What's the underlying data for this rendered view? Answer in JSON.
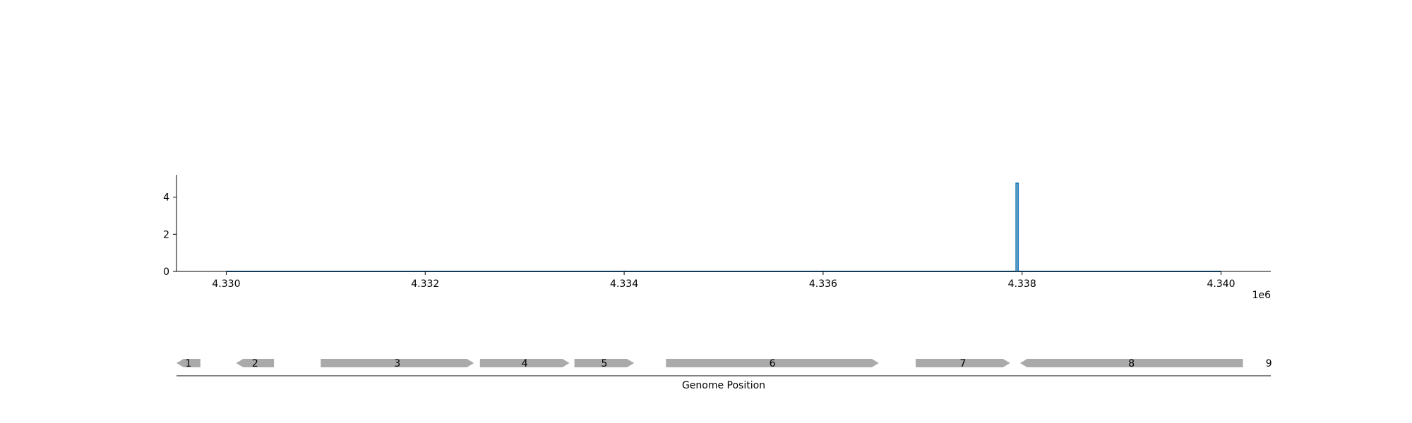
{
  "chart_data": [
    {
      "type": "line",
      "title": "",
      "xlabel": "",
      "ylabel": "",
      "x_offset_label": "1e6",
      "xlim": [
        4329500,
        4340500
      ],
      "ylim": [
        0,
        5.2
      ],
      "x_ticks": [
        4330000,
        4332000,
        4334000,
        4336000,
        4338000,
        4340000
      ],
      "x_tick_labels": [
        "4.330",
        "4.332",
        "4.334",
        "4.336",
        "4.338",
        "4.340"
      ],
      "y_ticks": [
        0,
        2,
        4
      ],
      "y_tick_labels": [
        "0",
        "2",
        "4"
      ],
      "grid": false,
      "color": "#1f77b4",
      "series": [
        {
          "x": [
            4330000,
            4337940,
            4337940,
            4337960,
            4337960,
            4340000
          ],
          "values": [
            0,
            0,
            4.75,
            4.75,
            0,
            0
          ]
        }
      ]
    },
    {
      "type": "gene-track",
      "xlabel": "Genome Position",
      "xlim": [
        4329500,
        4340500
      ],
      "gene_color": "#aaaaaa",
      "genes": [
        {
          "label": "1",
          "start": 4329500,
          "end": 4329740,
          "strand": "-"
        },
        {
          "label": "2",
          "start": 4330100,
          "end": 4330480,
          "strand": "-"
        },
        {
          "label": "3",
          "start": 4330950,
          "end": 4332490,
          "strand": "+"
        },
        {
          "label": "4",
          "start": 4332550,
          "end": 4333450,
          "strand": "+"
        },
        {
          "label": "5",
          "start": 4333500,
          "end": 4334100,
          "strand": "+"
        },
        {
          "label": "6",
          "start": 4334420,
          "end": 4336560,
          "strand": "+"
        },
        {
          "label": "7",
          "start": 4336930,
          "end": 4337880,
          "strand": "+"
        },
        {
          "label": "8",
          "start": 4337980,
          "end": 4340220,
          "strand": "-"
        },
        {
          "label": "9",
          "start": 4340480,
          "end": 4340480,
          "strand": "+"
        }
      ]
    }
  ]
}
